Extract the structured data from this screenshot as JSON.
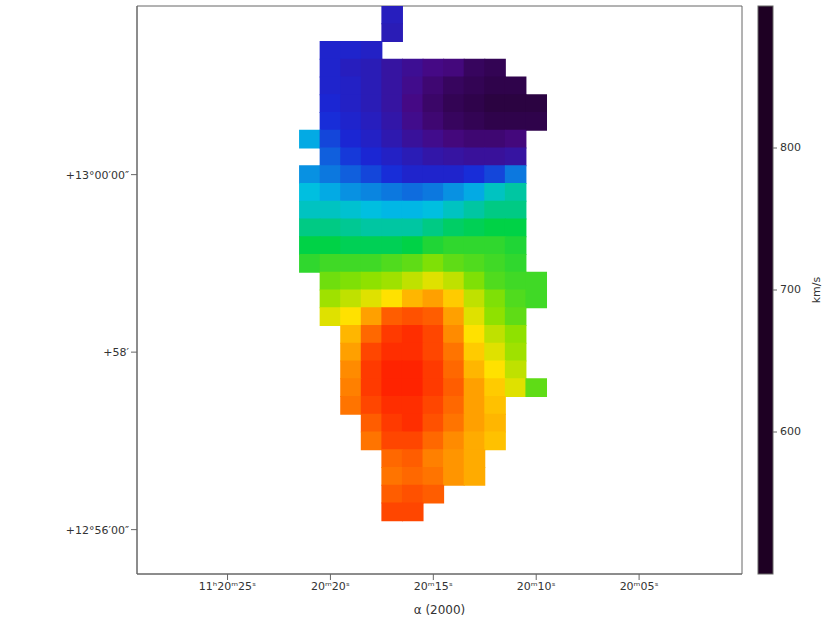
{
  "chart_data": {
    "type": "heatmap",
    "x_label": "α (2000)",
    "x": [
      21,
      20,
      19,
      18,
      17,
      16,
      15,
      14,
      13,
      12,
      11,
      10
    ],
    "y": [
      61.8,
      61.6,
      61.4,
      61.2,
      61.0,
      60.8,
      60.6,
      60.4,
      60.2,
      60.0,
      59.8,
      59.6,
      59.4,
      59.2,
      59.0,
      58.8,
      58.6,
      58.4,
      58.2,
      58.0,
      57.8,
      57.6,
      57.4,
      57.2,
      57.0,
      56.8,
      56.6,
      56.4,
      56.2
    ],
    "z": [
      [
        null,
        null,
        null,
        null,
        590,
        null,
        null,
        null,
        null,
        null,
        null,
        null
      ],
      [
        null,
        null,
        null,
        null,
        585,
        null,
        null,
        null,
        null,
        null,
        null,
        null
      ],
      [
        null,
        600,
        600,
        595,
        null,
        null,
        null,
        null,
        null,
        null,
        null,
        null
      ],
      [
        null,
        600,
        590,
        585,
        570,
        560,
        550,
        545,
        530,
        525,
        null,
        null
      ],
      [
        null,
        600,
        595,
        585,
        570,
        555,
        540,
        530,
        525,
        520,
        520,
        null
      ],
      [
        null,
        605,
        595,
        585,
        570,
        550,
        535,
        525,
        520,
        515,
        515,
        515
      ],
      [
        null,
        610,
        600,
        590,
        575,
        555,
        540,
        530,
        525,
        520,
        520,
        520
      ],
      [
        660,
        620,
        605,
        595,
        580,
        565,
        555,
        545,
        540,
        540,
        545,
        null
      ],
      [
        null,
        630,
        615,
        605,
        595,
        585,
        575,
        570,
        565,
        565,
        570,
        null
      ],
      [
        650,
        640,
        630,
        620,
        610,
        600,
        600,
        600,
        610,
        620,
        640,
        null
      ],
      [
        670,
        660,
        650,
        645,
        640,
        635,
        640,
        650,
        660,
        680,
        690,
        null
      ],
      [
        680,
        680,
        675,
        670,
        665,
        665,
        670,
        680,
        690,
        700,
        700,
        null
      ],
      [
        700,
        700,
        695,
        690,
        690,
        690,
        700,
        710,
        715,
        720,
        720,
        null
      ],
      [
        720,
        720,
        715,
        715,
        715,
        720,
        730,
        735,
        735,
        735,
        730,
        null
      ],
      [
        735,
        740,
        740,
        740,
        745,
        750,
        760,
        750,
        745,
        740,
        735,
        null
      ],
      [
        null,
        755,
        760,
        765,
        770,
        780,
        790,
        780,
        760,
        745,
        740,
        740
      ],
      [
        null,
        770,
        780,
        790,
        800,
        820,
        830,
        810,
        780,
        760,
        745,
        740
      ],
      [
        null,
        790,
        800,
        830,
        860,
        865,
        860,
        830,
        790,
        765,
        750,
        null
      ],
      [
        null,
        null,
        820,
        855,
        875,
        880,
        870,
        840,
        800,
        780,
        765,
        null
      ],
      [
        null,
        null,
        830,
        870,
        880,
        880,
        870,
        850,
        810,
        790,
        770,
        null
      ],
      [
        null,
        null,
        840,
        875,
        885,
        885,
        875,
        855,
        820,
        800,
        780,
        null
      ],
      [
        null,
        null,
        845,
        875,
        885,
        885,
        875,
        860,
        830,
        810,
        790,
        750
      ],
      [
        null,
        null,
        850,
        870,
        880,
        880,
        870,
        855,
        830,
        815,
        null,
        null
      ],
      [
        null,
        null,
        null,
        860,
        875,
        880,
        865,
        850,
        830,
        820,
        null,
        null
      ],
      [
        null,
        null,
        null,
        850,
        870,
        870,
        855,
        840,
        825,
        815,
        null,
        null
      ],
      [
        null,
        null,
        null,
        null,
        855,
        860,
        845,
        835,
        825,
        null,
        null,
        null
      ],
      [
        null,
        null,
        null,
        null,
        850,
        855,
        850,
        835,
        825,
        null,
        null,
        null
      ],
      [
        null,
        null,
        null,
        null,
        860,
        865,
        860,
        null,
        null,
        null,
        null,
        null
      ],
      [
        null,
        null,
        null,
        null,
        870,
        870,
        null,
        null,
        null,
        null,
        null,
        null
      ]
    ],
    "xlim": [
      29.4,
      0
    ],
    "ylim": [
      55.5,
      61.9
    ],
    "xticks": [
      {
        "value": 25,
        "label": "11ʰ20ᵐ25ˢ"
      },
      {
        "value": 20,
        "label": "20ᵐ20ˢ"
      },
      {
        "value": 15,
        "label": "20ᵐ15ˢ"
      },
      {
        "value": 10,
        "label": "20ᵐ10ˢ"
      },
      {
        "value": 5,
        "label": "20ᵐ05ˢ"
      }
    ],
    "yticks": [
      {
        "value": 60,
        "label": "+13°00′00″"
      },
      {
        "value": 58,
        "label": "+58′"
      },
      {
        "value": 56,
        "label": "+12°56′00″"
      }
    ],
    "colorbar": {
      "label": "km/s",
      "range": [
        500,
        900
      ],
      "ticks": [
        600,
        700,
        800
      ]
    }
  }
}
